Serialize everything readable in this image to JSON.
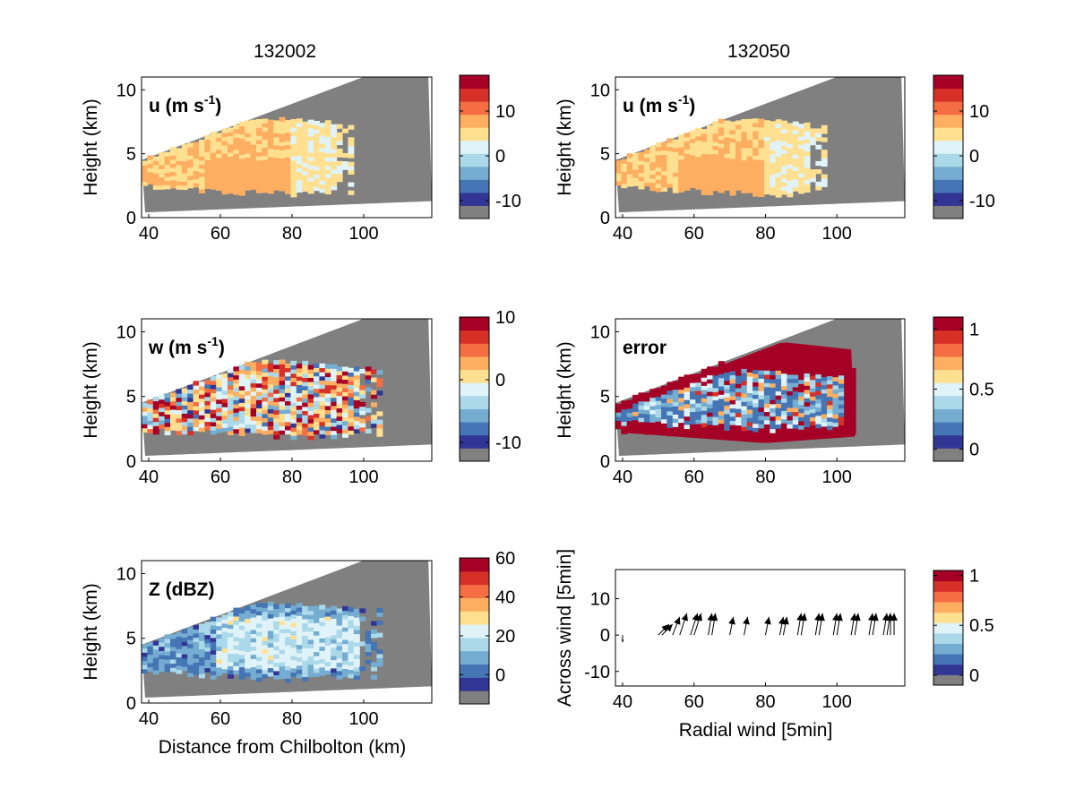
{
  "figure": {
    "column_titles": [
      "132002",
      "132050"
    ]
  },
  "chart_data": [
    {
      "id": "u-132002",
      "type": "heatmap",
      "panel_label": "u (m s",
      "panel_label_sup": "-1",
      "panel_label_close": ")",
      "ylabel": "Height (km)",
      "xlabel": "",
      "xlim": [
        38,
        119
      ],
      "ylim": [
        0,
        11
      ],
      "xticks": [
        40,
        60,
        80,
        100
      ],
      "yticks": [
        0,
        5,
        10
      ],
      "colorbar": {
        "ticks": [
          10,
          0,
          -10
        ],
        "range": [
          -14,
          18
        ]
      },
      "grid": false
    },
    {
      "id": "u-132050",
      "type": "heatmap",
      "panel_label": "u (m s",
      "panel_label_sup": "-1",
      "panel_label_close": ")",
      "ylabel": "Height (km)",
      "xlabel": "",
      "xlim": [
        38,
        119
      ],
      "ylim": [
        0,
        11
      ],
      "xticks": [
        40,
        60,
        80,
        100
      ],
      "yticks": [
        0,
        5,
        10
      ],
      "colorbar": {
        "ticks": [
          10,
          0,
          -10
        ],
        "range": [
          -14,
          18
        ]
      },
      "grid": false
    },
    {
      "id": "w-132002",
      "type": "heatmap",
      "panel_label": "w (m s",
      "panel_label_sup": "-1",
      "panel_label_close": ")",
      "ylabel": "Height (km)",
      "xlabel": "",
      "xlim": [
        38,
        119
      ],
      "ylim": [
        0,
        11
      ],
      "xticks": [
        40,
        60,
        80,
        100
      ],
      "yticks": [
        0,
        5,
        10
      ],
      "colorbar": {
        "ticks": [
          10,
          0,
          -10
        ],
        "range": [
          -13,
          10
        ]
      },
      "grid": false
    },
    {
      "id": "error-132050",
      "type": "heatmap",
      "panel_label": "error",
      "ylabel": "Height (km)",
      "xlabel": "",
      "xlim": [
        38,
        119
      ],
      "ylim": [
        0,
        11
      ],
      "xticks": [
        40,
        60,
        80,
        100
      ],
      "yticks": [
        0,
        5,
        10
      ],
      "colorbar": {
        "ticks": [
          1,
          0.5,
          0
        ],
        "range": [
          -0.1,
          1.1
        ]
      },
      "grid": false
    },
    {
      "id": "Z-132002",
      "type": "heatmap",
      "panel_label": "Z (dBZ)",
      "ylabel": "Height (km)",
      "xlabel": "Distance from Chilbolton (km)",
      "xlim": [
        38,
        119
      ],
      "ylim": [
        0,
        11
      ],
      "xticks": [
        40,
        60,
        80,
        100
      ],
      "yticks": [
        0,
        5,
        10
      ],
      "colorbar": {
        "ticks": [
          60,
          40,
          20,
          0
        ],
        "range": [
          -15,
          60
        ]
      },
      "grid": false
    },
    {
      "id": "wind-arrows",
      "type": "scatter",
      "panel_label": "",
      "ylabel": "Across wind [5min]",
      "xlabel": "Radial wind [5min]",
      "xlim": [
        38,
        119
      ],
      "ylim": [
        -14,
        18
      ],
      "xticks": [
        40,
        60,
        80,
        100
      ],
      "yticks": [
        10,
        0,
        -10
      ],
      "colorbar": {
        "ticks": [
          1,
          0.5,
          0
        ],
        "range": [
          -0.1,
          1.05
        ]
      },
      "grid": false,
      "arrows": [
        {
          "x": 40,
          "y": 0,
          "u": 0,
          "v": -2
        },
        {
          "x": 50,
          "y": 0,
          "u": 3,
          "v": 3
        },
        {
          "x": 51,
          "y": 0,
          "u": 3,
          "v": 3
        },
        {
          "x": 54,
          "y": 0,
          "u": 2,
          "v": 5
        },
        {
          "x": 56,
          "y": 0,
          "u": 2,
          "v": 6
        },
        {
          "x": 59,
          "y": 0,
          "u": 2,
          "v": 6
        },
        {
          "x": 60,
          "y": 0,
          "u": 2,
          "v": 6
        },
        {
          "x": 64,
          "y": 0,
          "u": 1,
          "v": 6
        },
        {
          "x": 65,
          "y": 0,
          "u": 1,
          "v": 6
        },
        {
          "x": 70,
          "y": 0,
          "u": 1,
          "v": 5
        },
        {
          "x": 74,
          "y": 0,
          "u": 1,
          "v": 5
        },
        {
          "x": 80,
          "y": 0,
          "u": 1,
          "v": 5
        },
        {
          "x": 84,
          "y": 0,
          "u": 1,
          "v": 5
        },
        {
          "x": 85,
          "y": 0,
          "u": 1,
          "v": 5
        },
        {
          "x": 89,
          "y": 0,
          "u": 1,
          "v": 6
        },
        {
          "x": 90,
          "y": 0,
          "u": 1,
          "v": 6
        },
        {
          "x": 94,
          "y": 0,
          "u": 1,
          "v": 6
        },
        {
          "x": 95,
          "y": 0,
          "u": 1,
          "v": 6
        },
        {
          "x": 99,
          "y": 0,
          "u": 1,
          "v": 6
        },
        {
          "x": 100,
          "y": 0,
          "u": 1,
          "v": 6
        },
        {
          "x": 104,
          "y": 0,
          "u": 1,
          "v": 6
        },
        {
          "x": 105,
          "y": 0,
          "u": 1,
          "v": 6
        },
        {
          "x": 109,
          "y": 0,
          "u": 1,
          "v": 6
        },
        {
          "x": 110,
          "y": 0,
          "u": 1,
          "v": 6
        },
        {
          "x": 113,
          "y": 0,
          "u": 1,
          "v": 6
        },
        {
          "x": 114,
          "y": 0,
          "u": 1,
          "v": 6
        },
        {
          "x": 115,
          "y": 0,
          "u": 0,
          "v": 6
        },
        {
          "x": 116,
          "y": 0,
          "u": 0,
          "v": 6
        }
      ]
    }
  ],
  "colors": {
    "colormap": [
      "#808080",
      "#313695",
      "#4575b4",
      "#74add1",
      "#abd9e9",
      "#e0f3f8",
      "#fee090",
      "#fdae61",
      "#f46d43",
      "#d73027",
      "#a50026"
    ],
    "masked": "#808080",
    "background": "#ffffff"
  }
}
